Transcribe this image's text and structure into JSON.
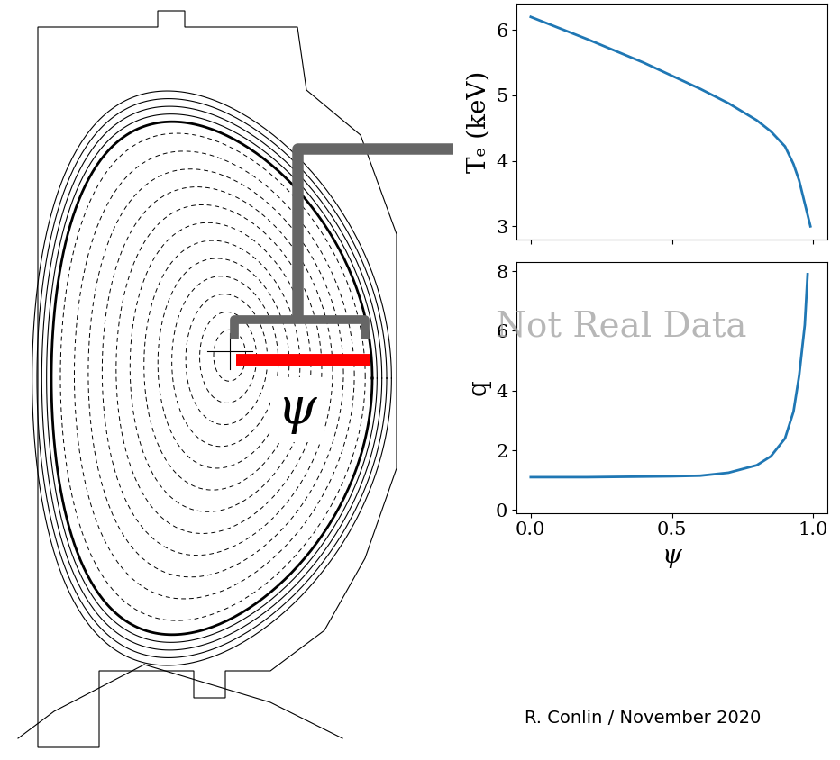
{
  "diagram": {
    "label": "ψ"
  },
  "watermark": "Not Real Data",
  "credit": "R. Conlin / November 2020",
  "chart_data": [
    {
      "type": "line",
      "ylabel": "Tₑ (keV)",
      "color": "#1f77b4",
      "tick_labels": "y",
      "x": [
        0,
        0.1,
        0.2,
        0.3,
        0.4,
        0.5,
        0.6,
        0.7,
        0.8,
        0.85,
        0.9,
        0.93,
        0.95,
        0.97,
        0.99
      ],
      "values": [
        6.2,
        6.03,
        5.86,
        5.68,
        5.5,
        5.3,
        5.1,
        4.88,
        4.62,
        4.45,
        4.22,
        3.95,
        3.7,
        3.35,
        3.0
      ],
      "xlim": [
        -0.05,
        1.05
      ],
      "xticks": [
        0,
        0.5,
        1
      ],
      "ylim": [
        2.8,
        6.4
      ],
      "yticks": [
        3,
        4,
        5,
        6
      ]
    },
    {
      "type": "line",
      "ylabel": "q",
      "xlabel": "ψ",
      "color": "#1f77b4",
      "x": [
        0,
        0.1,
        0.2,
        0.3,
        0.4,
        0.5,
        0.6,
        0.7,
        0.8,
        0.85,
        0.9,
        0.93,
        0.95,
        0.97,
        0.98
      ],
      "values": [
        1.1,
        1.1,
        1.1,
        1.11,
        1.12,
        1.13,
        1.15,
        1.25,
        1.5,
        1.8,
        2.4,
        3.3,
        4.5,
        6.2,
        7.9
      ],
      "xlim": [
        -0.05,
        1.05
      ],
      "xticks": [
        {
          "value": 0,
          "label": "0.0"
        },
        0.5,
        {
          "value": 1,
          "label": "1.0"
        }
      ],
      "ylim": [
        -0.1,
        8.3
      ],
      "yticks": [
        0,
        2,
        4,
        6,
        8
      ]
    }
  ]
}
